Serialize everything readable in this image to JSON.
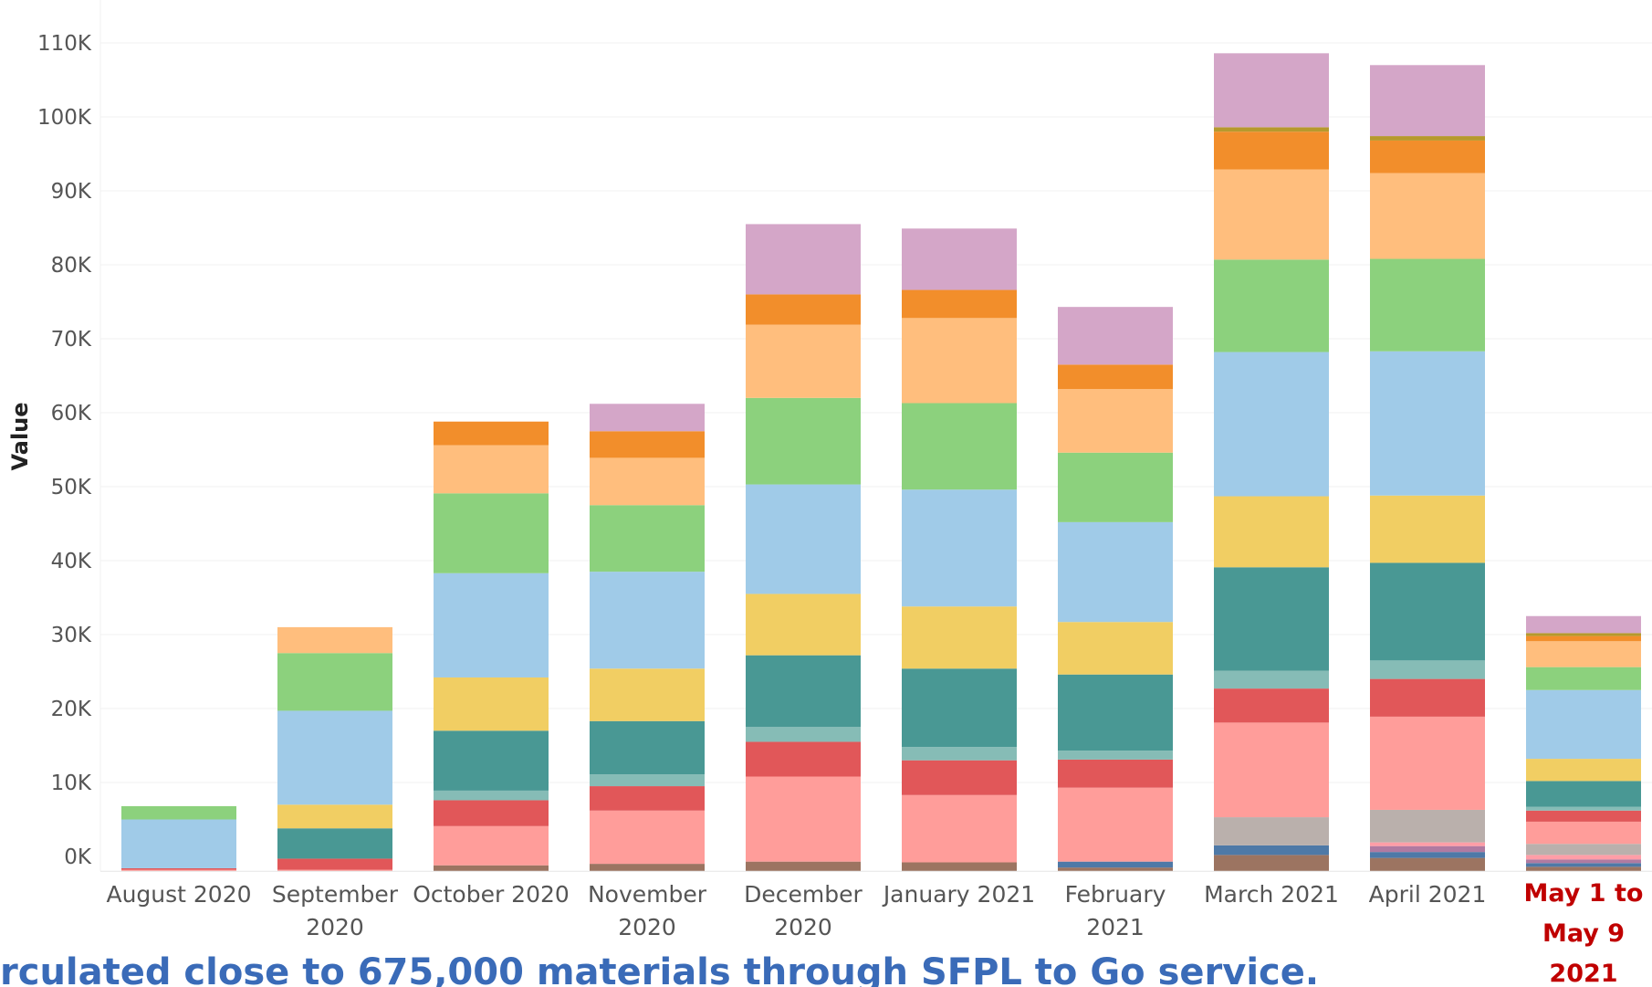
{
  "chart_data": {
    "type": "bar",
    "stacked": true,
    "ylabel": "Value",
    "ylim": [
      -2000,
      112000
    ],
    "yticks": [
      0,
      10000,
      20000,
      30000,
      40000,
      50000,
      60000,
      70000,
      80000,
      90000,
      100000,
      110000
    ],
    "ytick_labels": [
      "0K",
      "10K",
      "20K",
      "30K",
      "40K",
      "50K",
      "60K",
      "70K",
      "80K",
      "90K",
      "100K",
      "110K"
    ],
    "grid": "horizontal",
    "categories": [
      [
        "August 2020"
      ],
      [
        "September",
        "2020"
      ],
      [
        "October 2020"
      ],
      [
        "November",
        "2020"
      ],
      [
        "December",
        "2020"
      ],
      [
        "January 2021"
      ],
      [
        "February",
        "2021"
      ],
      [
        "March 2021"
      ],
      [
        "April 2021"
      ],
      [
        "May 1 to",
        "May 9",
        "2021"
      ]
    ],
    "highlighted_category_index": 9,
    "highlight_color": "#c00000",
    "caption": "rculated close to 675,000 materials through SFPL to Go service.",
    "caption_color": "#3a6bb8",
    "series": [
      {
        "color": "#9c7461",
        "values": [
          0,
          0,
          800,
          1000,
          1300,
          1200,
          500,
          2200,
          1800,
          600
        ]
      },
      {
        "color": "#4e79a7",
        "values": [
          0,
          0,
          0,
          0,
          0,
          0,
          800,
          1300,
          800,
          500
        ]
      },
      {
        "color": "#b07aa1",
        "values": [
          0,
          0,
          0,
          0,
          0,
          0,
          0,
          0,
          800,
          500
        ]
      },
      {
        "color": "#ff9da7",
        "values": [
          0,
          0,
          0,
          0,
          0,
          0,
          0,
          0,
          500,
          600
        ]
      },
      {
        "color": "#bab0ac",
        "values": [
          0,
          0,
          0,
          0,
          0,
          0,
          0,
          3800,
          4400,
          1500
        ]
      },
      {
        "color": "#ff9d9a",
        "values": [
          200,
          200,
          5300,
          7200,
          11500,
          9100,
          10000,
          12800,
          12600,
          3000
        ]
      },
      {
        "color": "#e15759",
        "values": [
          200,
          1500,
          3500,
          3300,
          4700,
          4700,
          3800,
          4600,
          5100,
          1500
        ]
      },
      {
        "color": "#86bcb6",
        "values": [
          0,
          0,
          1300,
          1600,
          2000,
          1800,
          1200,
          2400,
          2500,
          500
        ]
      },
      {
        "color": "#499894",
        "values": [
          0,
          4100,
          8100,
          7200,
          9700,
          10600,
          10300,
          14000,
          13200,
          3500
        ]
      },
      {
        "color": "#f1ce63",
        "values": [
          0,
          3200,
          7200,
          7100,
          8300,
          8400,
          7100,
          9600,
          9100,
          3000
        ]
      },
      {
        "color": "#a0cbe8",
        "values": [
          6600,
          12700,
          14100,
          13100,
          14800,
          15800,
          13500,
          19500,
          19500,
          9300
        ]
      },
      {
        "color": "#8cd17d",
        "values": [
          1800,
          7800,
          10800,
          9000,
          11700,
          11700,
          9400,
          12500,
          12500,
          3100
        ]
      },
      {
        "color": "#ffbe7d",
        "values": [
          0,
          3500,
          6500,
          6400,
          9900,
          11500,
          8600,
          12200,
          11600,
          3500
        ]
      },
      {
        "color": "#f28e2b",
        "values": [
          0,
          0,
          3200,
          3600,
          4100,
          3800,
          3300,
          5100,
          4400,
          700
        ]
      },
      {
        "color": "#b6992d",
        "values": [
          0,
          0,
          0,
          0,
          0,
          0,
          0,
          600,
          600,
          400
        ]
      },
      {
        "color": "#d4a6c8",
        "values": [
          0,
          0,
          0,
          3700,
          9500,
          8300,
          7800,
          10000,
          9600,
          2300
        ]
      }
    ]
  }
}
